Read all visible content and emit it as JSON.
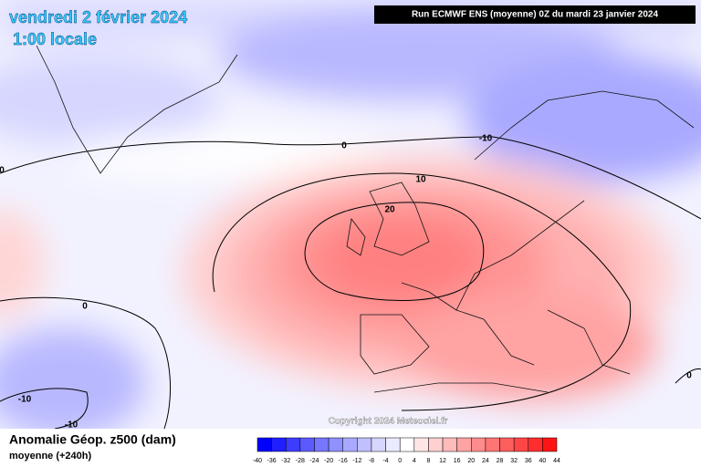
{
  "header": {
    "date": "vendredi 2 février 2024",
    "time": "1:00 locale",
    "run": "Run ECMWF ENS (moyenne) 0Z du mardi 23 janvier 2024"
  },
  "footer": {
    "title": "Anomalie Géop. z500 (dam)",
    "subtitle": "moyenne  (+240h)",
    "copyright": "Copyright 2024 Meteociel.fr"
  },
  "colorbar": {
    "ticks": [
      -40,
      -36,
      -32,
      -28,
      -24,
      -20,
      -16,
      -12,
      -8,
      -4,
      0,
      4,
      8,
      12,
      16,
      20,
      24,
      28,
      32,
      36,
      40,
      44
    ],
    "colors": [
      "#0000ff",
      "#1f1fff",
      "#3d3dff",
      "#5a5aff",
      "#7676ff",
      "#9090ff",
      "#a9a9ff",
      "#c0c0ff",
      "#d6d6ff",
      "#ebebff",
      "#ffffff",
      "#ffe6e6",
      "#ffd0d0",
      "#ffbaba",
      "#ffa3a3",
      "#ff8c8c",
      "#ff7575",
      "#ff5e5e",
      "#ff4646",
      "#ff2e2e",
      "#ff1414"
    ]
  },
  "contour_labels": [
    "0",
    "10",
    "20",
    "-10",
    "0",
    "-10",
    "-10",
    "0",
    "0"
  ]
}
